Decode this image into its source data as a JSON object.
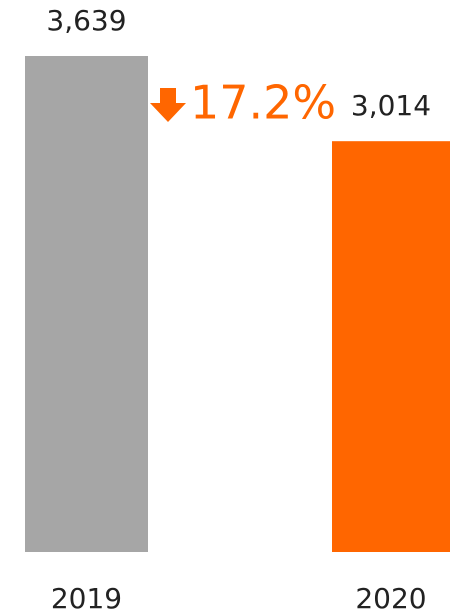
{
  "chart_data": {
    "type": "bar",
    "categories": [
      "2019",
      "2020"
    ],
    "values": [
      3639,
      3014
    ],
    "value_labels": [
      "3,639",
      "3,014"
    ],
    "colors": [
      "#a6a6a6",
      "#ff6600"
    ],
    "annotation": "17.2%"
  }
}
